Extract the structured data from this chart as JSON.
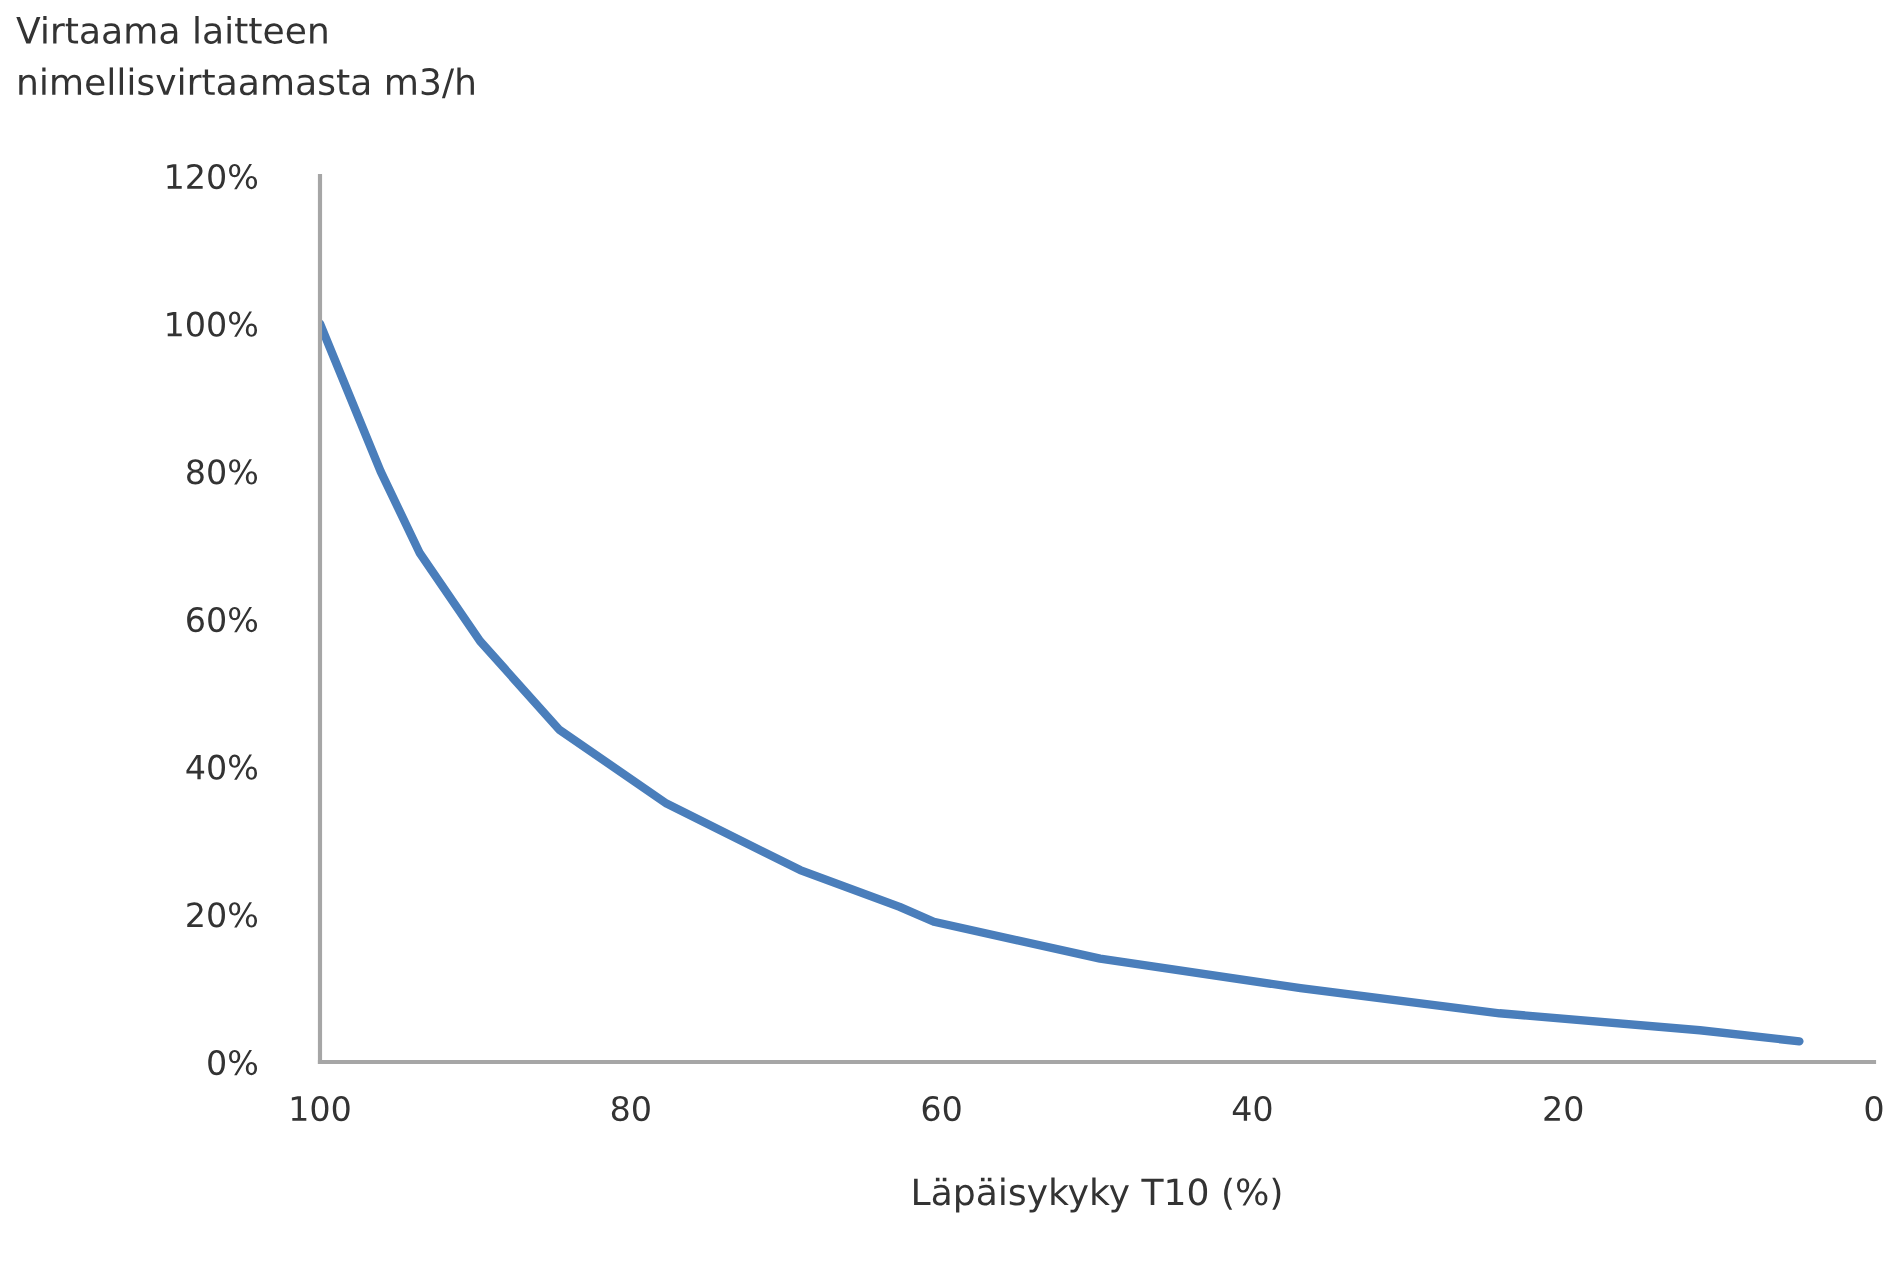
{
  "chart_data": {
    "type": "line",
    "ylabel": "Virtaama laitteen\nnimellisvirtaamasta m3/h",
    "xlabel": "Läpäisykyky T10 (%)",
    "xlim": [
      100,
      0
    ],
    "xticks": [
      100,
      80,
      60,
      40,
      20,
      0
    ],
    "ylim": [
      0,
      120
    ],
    "yticks": [
      {
        "value": 0,
        "label": "0%"
      },
      {
        "value": 20,
        "label": "20%"
      },
      {
        "value": 40,
        "label": "40%"
      },
      {
        "value": 60,
        "label": "60%"
      },
      {
        "value": 80,
        "label": "80%"
      },
      {
        "value": 100,
        "label": "100%"
      },
      {
        "value": 120,
        "label": "120%"
      }
    ],
    "grid": false,
    "marker": "none",
    "line_style": "solid",
    "series": [
      {
        "color": "#4a7ebb",
        "x": [
          100,
          96.1,
          93.6,
          89.7,
          84.6,
          77.7,
          69.1,
          62.7,
          60.5,
          49.8,
          36.9,
          24.1,
          11.2,
          4.8
        ],
        "values": [
          100,
          80,
          69,
          57,
          45,
          35,
          26,
          21,
          19,
          14,
          10,
          6.6,
          4.3,
          2.8
        ]
      }
    ]
  }
}
